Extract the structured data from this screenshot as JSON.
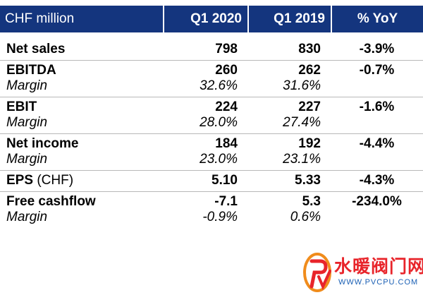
{
  "table": {
    "headers": [
      "CHF million",
      "Q1 2020",
      "Q1 2019",
      "% YoY"
    ],
    "rows": {
      "net_sales": {
        "label": "Net sales",
        "q1_2020": "798",
        "q1_2019": "830",
        "yoy": "-3.9%"
      },
      "ebitda": {
        "label": "EBITDA",
        "q1_2020": "260",
        "q1_2019": "262",
        "yoy": "-0.7%"
      },
      "ebitda_margin": {
        "label": "Margin",
        "q1_2020": "32.6%",
        "q1_2019": "31.6%"
      },
      "ebit": {
        "label": "EBIT",
        "q1_2020": "224",
        "q1_2019": "227",
        "yoy": "-1.6%"
      },
      "ebit_margin": {
        "label": "Margin",
        "q1_2020": "28.0%",
        "q1_2019": "27.4%"
      },
      "net_income": {
        "label": "Net income",
        "q1_2020": "184",
        "q1_2019": "192",
        "yoy": "-4.4%"
      },
      "net_income_margin": {
        "label": "Margin",
        "q1_2020": "23.0%",
        "q1_2019": "23.1%"
      },
      "eps": {
        "label": "EPS",
        "unit": "(CHF)",
        "q1_2020": "5.10",
        "q1_2019": "5.33",
        "yoy": "-4.3%"
      },
      "fcf": {
        "label": "Free cashflow",
        "q1_2020": "-7.1",
        "q1_2019": "5.3",
        "yoy": "-234.0%"
      },
      "fcf_margin": {
        "label": "Margin",
        "q1_2020": "-0.9%",
        "q1_2019": "0.6%"
      }
    }
  },
  "watermark": {
    "name": "水暖阀门网",
    "url": "WWW.PVCPU.COM"
  },
  "colors": {
    "header_bg": "#14357e",
    "watermark_red": "#e8242a",
    "watermark_blue": "#1a5fb4"
  }
}
